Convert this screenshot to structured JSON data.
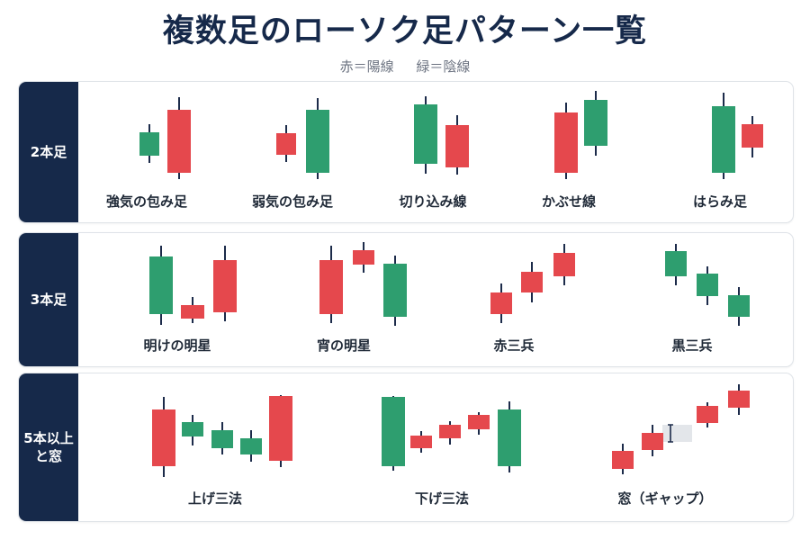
{
  "title": "複数足のローソク足パターン一覧",
  "legend": {
    "red": "赤＝陽線",
    "green": "緑＝陰線"
  },
  "colors": {
    "bull": "#e5484d",
    "bear": "#2e9e6f",
    "wick": "#1c2b4a",
    "label_bg": "#16294a"
  },
  "sections": [
    {
      "label": "2本足",
      "patterns": [
        {
          "name": "強気の包み足"
        },
        {
          "name": "弱気の包み足"
        },
        {
          "name": "切り込み線"
        },
        {
          "name": "かぶせ線"
        },
        {
          "name": "はらみ足"
        }
      ]
    },
    {
      "label": "3本足",
      "patterns": [
        {
          "name": "明けの明星"
        },
        {
          "name": "宵の明星"
        },
        {
          "name": "赤三兵"
        },
        {
          "name": "黒三兵"
        }
      ]
    },
    {
      "label": "5本以上\nと窓",
      "patterns": [
        {
          "name": "上げ三法"
        },
        {
          "name": "下げ三法"
        },
        {
          "name": "窓（ギャップ）"
        }
      ]
    }
  ]
}
